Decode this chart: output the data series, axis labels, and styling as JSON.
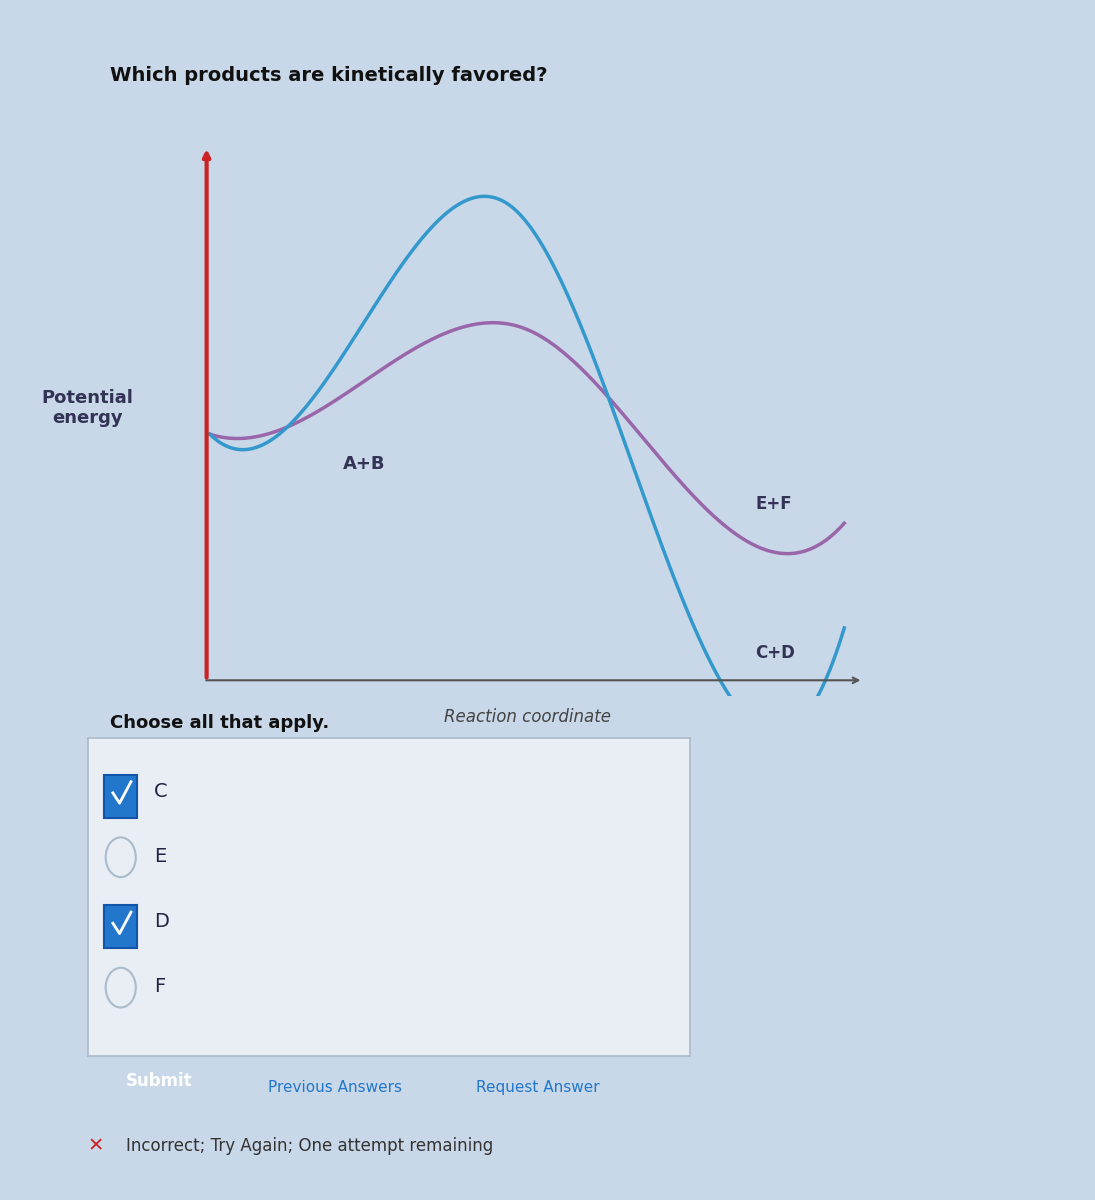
{
  "title": "Which products are kinetically favored?",
  "ylabel": "Potential\nenergy",
  "xlabel": "Reaction coordinate",
  "bg_color": "#c8d8e8",
  "plot_bg_color": "#c8d8e8",
  "curve_blue_color": "#3399cc",
  "curve_purple_color": "#9966aa",
  "arrow_color_top": "#cc2222",
  "arrow_color_bottom": "#cc88aa",
  "label_AB": "A+B",
  "label_EF": "E+F",
  "label_CD": "C+D",
  "label_rxn": "Reaction coordinate",
  "choose_text": "Choose all that apply.",
  "checkbox_items": [
    "C",
    "E",
    "D",
    "F"
  ],
  "checked_items": [
    true,
    false,
    true,
    false
  ],
  "submit_text": "Submit",
  "prev_answers_text": "Previous Answers",
  "request_answer_text": "Request Answer",
  "incorrect_text": "Incorrect; Try Again; One attempt remaining"
}
